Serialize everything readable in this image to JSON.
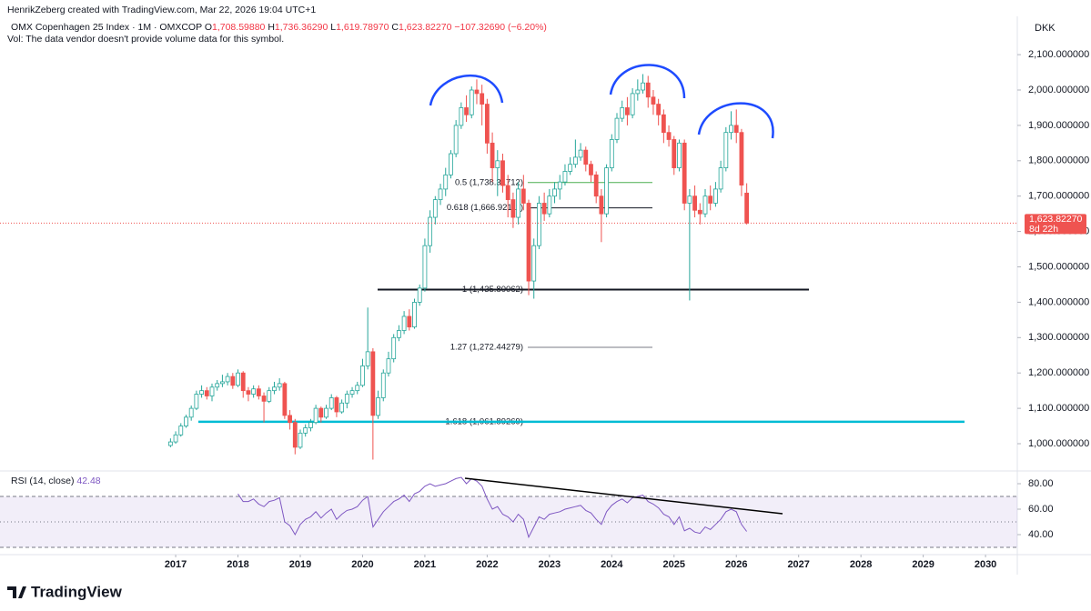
{
  "header": {
    "credit": "HenrikZeberg created with TradingView.com, Mar 22, 2026 19:04 UTC+1",
    "symbol": "OMX Copenhagen 25 Index · 1M · OMXCOP",
    "ohlc_labels": [
      "O",
      "H",
      "L",
      "C"
    ],
    "ohlc_values": [
      "1,708.59880",
      "1,736.36290",
      "1,619.78970",
      "1,623.82270"
    ],
    "change": "−107.32690 (−6.20%)",
    "vol": "Vol: The data vendor doesn't provide volume data for this symbol.",
    "currency": "DKK",
    "countdown": "8d 22h",
    "brand": "TradingView"
  },
  "chart_data": {
    "type": "candlestick",
    "up_color": "#26a69a",
    "down_color": "#ef5350",
    "x": [
      "2016-12",
      "2017-01",
      "2017-02",
      "2017-03",
      "2017-04",
      "2017-05",
      "2017-06",
      "2017-07",
      "2017-08",
      "2017-09",
      "2017-10",
      "2017-11",
      "2017-12",
      "2018-01",
      "2018-02",
      "2018-03",
      "2018-04",
      "2018-05",
      "2018-06",
      "2018-07",
      "2018-08",
      "2018-09",
      "2018-10",
      "2018-11",
      "2018-12",
      "2019-01",
      "2019-02",
      "2019-03",
      "2019-04",
      "2019-05",
      "2019-06",
      "2019-07",
      "2019-08",
      "2019-09",
      "2019-10",
      "2019-11",
      "2019-12",
      "2020-01",
      "2020-02",
      "2020-03",
      "2020-04",
      "2020-05",
      "2020-06",
      "2020-07",
      "2020-08",
      "2020-09",
      "2020-10",
      "2020-11",
      "2020-12",
      "2021-01",
      "2021-02",
      "2021-03",
      "2021-04",
      "2021-05",
      "2021-06",
      "2021-07",
      "2021-08",
      "2021-09",
      "2021-10",
      "2021-11",
      "2021-12",
      "2022-01",
      "2022-02",
      "2022-03",
      "2022-04",
      "2022-05",
      "2022-06",
      "2022-07",
      "2022-08",
      "2022-09",
      "2022-10",
      "2022-11",
      "2022-12",
      "2023-01",
      "2023-02",
      "2023-03",
      "2023-04",
      "2023-05",
      "2023-06",
      "2023-07",
      "2023-08",
      "2023-09",
      "2023-10",
      "2023-11",
      "2023-12",
      "2024-01",
      "2024-02",
      "2024-03",
      "2024-04",
      "2024-05",
      "2024-06",
      "2024-07",
      "2024-08",
      "2024-09",
      "2024-10",
      "2024-11",
      "2024-12",
      "2025-01",
      "2025-02",
      "2025-03",
      "2025-04",
      "2025-05",
      "2025-06",
      "2025-07",
      "2025-08",
      "2025-09",
      "2025-10",
      "2025-11",
      "2025-12",
      "2026-01",
      "2026-02",
      "2026-03"
    ],
    "ohlc": [
      [
        995,
        1015,
        990,
        1005
      ],
      [
        1005,
        1035,
        1000,
        1025
      ],
      [
        1025,
        1058,
        1020,
        1050
      ],
      [
        1050,
        1082,
        1045,
        1075
      ],
      [
        1075,
        1108,
        1065,
        1100
      ],
      [
        1100,
        1150,
        1095,
        1140
      ],
      [
        1140,
        1165,
        1130,
        1150
      ],
      [
        1150,
        1160,
        1125,
        1135
      ],
      [
        1135,
        1170,
        1120,
        1160
      ],
      [
        1160,
        1180,
        1150,
        1170
      ],
      [
        1170,
        1195,
        1160,
        1175
      ],
      [
        1175,
        1200,
        1165,
        1190
      ],
      [
        1190,
        1200,
        1155,
        1165
      ],
      [
        1165,
        1210,
        1160,
        1200
      ],
      [
        1200,
        1205,
        1130,
        1150
      ],
      [
        1150,
        1160,
        1120,
        1140
      ],
      [
        1140,
        1165,
        1130,
        1155
      ],
      [
        1155,
        1165,
        1125,
        1135
      ],
      [
        1135,
        1145,
        1060,
        1120
      ],
      [
        1120,
        1160,
        1115,
        1150
      ],
      [
        1150,
        1175,
        1140,
        1160
      ],
      [
        1160,
        1185,
        1150,
        1170
      ],
      [
        1170,
        1175,
        1070,
        1080
      ],
      [
        1080,
        1095,
        1040,
        1060
      ],
      [
        1060,
        1070,
        970,
        990
      ],
      [
        990,
        1040,
        985,
        1030
      ],
      [
        1030,
        1055,
        1020,
        1045
      ],
      [
        1045,
        1070,
        1035,
        1060
      ],
      [
        1060,
        1110,
        1055,
        1100
      ],
      [
        1100,
        1105,
        1060,
        1075
      ],
      [
        1075,
        1110,
        1070,
        1100
      ],
      [
        1100,
        1140,
        1095,
        1130
      ],
      [
        1130,
        1135,
        1075,
        1090
      ],
      [
        1090,
        1125,
        1085,
        1115
      ],
      [
        1115,
        1150,
        1100,
        1140
      ],
      [
        1140,
        1160,
        1130,
        1150
      ],
      [
        1150,
        1175,
        1140,
        1165
      ],
      [
        1165,
        1240,
        1160,
        1220
      ],
      [
        1220,
        1385,
        1210,
        1260
      ],
      [
        1260,
        1270,
        955,
        1080
      ],
      [
        1080,
        1150,
        1070,
        1130
      ],
      [
        1130,
        1210,
        1120,
        1200
      ],
      [
        1200,
        1260,
        1190,
        1240
      ],
      [
        1240,
        1310,
        1230,
        1300
      ],
      [
        1300,
        1335,
        1290,
        1320
      ],
      [
        1320,
        1375,
        1310,
        1360
      ],
      [
        1360,
        1380,
        1320,
        1330
      ],
      [
        1330,
        1410,
        1325,
        1400
      ],
      [
        1400,
        1450,
        1390,
        1440
      ],
      [
        1440,
        1580,
        1430,
        1560
      ],
      [
        1560,
        1660,
        1540,
        1640
      ],
      [
        1640,
        1700,
        1620,
        1690
      ],
      [
        1690,
        1735,
        1675,
        1720
      ],
      [
        1720,
        1780,
        1700,
        1760
      ],
      [
        1760,
        1830,
        1750,
        1820
      ],
      [
        1820,
        1915,
        1810,
        1900
      ],
      [
        1900,
        1965,
        1890,
        1950
      ],
      [
        1950,
        1985,
        1910,
        1930
      ],
      [
        1930,
        2010,
        1920,
        2000
      ],
      [
        2000,
        2030,
        1960,
        1990
      ],
      [
        1990,
        2015,
        1900,
        1960
      ],
      [
        1960,
        1975,
        1820,
        1850
      ],
      [
        1850,
        1880,
        1740,
        1780
      ],
      [
        1780,
        1830,
        1700,
        1800
      ],
      [
        1800,
        1820,
        1710,
        1730
      ],
      [
        1730,
        1760,
        1640,
        1690
      ],
      [
        1690,
        1710,
        1610,
        1640
      ],
      [
        1640,
        1740,
        1620,
        1720
      ],
      [
        1720,
        1760,
        1660,
        1680
      ],
      [
        1680,
        1690,
        1420,
        1460
      ],
      [
        1460,
        1580,
        1410,
        1560
      ],
      [
        1560,
        1700,
        1550,
        1680
      ],
      [
        1680,
        1710,
        1630,
        1650
      ],
      [
        1650,
        1720,
        1640,
        1700
      ],
      [
        1700,
        1740,
        1680,
        1720
      ],
      [
        1720,
        1760,
        1690,
        1740
      ],
      [
        1740,
        1790,
        1730,
        1770
      ],
      [
        1770,
        1810,
        1760,
        1790
      ],
      [
        1790,
        1860,
        1780,
        1810
      ],
      [
        1810,
        1850,
        1800,
        1830
      ],
      [
        1830,
        1840,
        1770,
        1790
      ],
      [
        1790,
        1800,
        1740,
        1760
      ],
      [
        1760,
        1770,
        1680,
        1700
      ],
      [
        1700,
        1720,
        1570,
        1650
      ],
      [
        1650,
        1790,
        1640,
        1780
      ],
      [
        1780,
        1875,
        1770,
        1860
      ],
      [
        1860,
        1935,
        1850,
        1920
      ],
      [
        1920,
        1970,
        1910,
        1950
      ],
      [
        1950,
        1980,
        1900,
        1930
      ],
      [
        1930,
        2005,
        1920,
        1990
      ],
      [
        1990,
        2030,
        1970,
        2000
      ],
      [
        2000,
        2045,
        1990,
        2020
      ],
      [
        2020,
        2040,
        1950,
        1980
      ],
      [
        1980,
        2000,
        1930,
        1960
      ],
      [
        1960,
        1975,
        1900,
        1930
      ],
      [
        1930,
        1945,
        1850,
        1880
      ],
      [
        1880,
        1900,
        1840,
        1860
      ],
      [
        1860,
        1870,
        1760,
        1780
      ],
      [
        1780,
        1860,
        1770,
        1850
      ],
      [
        1850,
        1860,
        1660,
        1680
      ],
      [
        1680,
        1720,
        1405,
        1700
      ],
      [
        1700,
        1730,
        1640,
        1660
      ],
      [
        1660,
        1680,
        1620,
        1650
      ],
      [
        1650,
        1720,
        1640,
        1700
      ],
      [
        1700,
        1730,
        1660,
        1680
      ],
      [
        1680,
        1740,
        1670,
        1720
      ],
      [
        1720,
        1800,
        1710,
        1780
      ],
      [
        1780,
        1895,
        1770,
        1880
      ],
      [
        1880,
        1940,
        1860,
        1900
      ],
      [
        1900,
        1945,
        1850,
        1880
      ],
      [
        1880,
        1890,
        1700,
        1731.15
      ],
      [
        1708.5988,
        1736.3629,
        1619.7897,
        1623.8227
      ]
    ],
    "xlim": [
      2014.18,
      2030.51
    ],
    "xticks": [
      2017,
      2018,
      2019,
      2020,
      2021,
      2022,
      2023,
      2024,
      2025,
      2026,
      2027,
      2028,
      2029,
      2030
    ],
    "ylim": [
      930.6,
      2203.1
    ],
    "yticks": [
      {
        "value": 1000,
        "label": "1,000.000000"
      },
      {
        "value": 1100,
        "label": "1,100.000000"
      },
      {
        "value": 1200,
        "label": "1,200.000000"
      },
      {
        "value": 1300,
        "label": "1,300.000000"
      },
      {
        "value": 1400,
        "label": "1,400.000000"
      },
      {
        "value": 1500,
        "label": "1,500.000000"
      },
      {
        "value": 1600,
        "label": "1,600.000000"
      },
      {
        "value": 1700,
        "label": "1,700.000000"
      },
      {
        "value": 1800,
        "label": "1,800.000000"
      },
      {
        "value": 1900,
        "label": "1,900.000000"
      },
      {
        "value": 2000,
        "label": "2,000.000000"
      },
      {
        "value": 2100,
        "label": "2,100.000000"
      }
    ],
    "fib": [
      {
        "value": 1738.31712,
        "label": "0.5 (1,738.31712)",
        "color": "#4caf50"
      },
      {
        "value": 1666.92111,
        "label": "0.618 (1,666.92111)",
        "color": "#131722"
      },
      {
        "value": 1435.80062,
        "label": "1 (1,435.80062)",
        "color": "#7e3fb4"
      },
      {
        "value": 1272.44279,
        "label": "1.27 (1,272.44279)",
        "color": "#787b86"
      },
      {
        "value": 1061.89269,
        "label": "1.618 (1,061.89269)",
        "color": "#2962ff"
      }
    ],
    "rsi": {
      "name": "RSI (14, close)",
      "color": "#7e57c2",
      "ylim": [
        25,
        90
      ],
      "levels": [
        70,
        50,
        30
      ],
      "yticks": [
        {
          "value": 80,
          "label": "80.00"
        },
        {
          "value": 60,
          "label": "60.00"
        },
        {
          "value": 40,
          "label": "40.00"
        }
      ],
      "values": [
        null,
        null,
        null,
        null,
        null,
        null,
        null,
        null,
        null,
        null,
        null,
        null,
        null,
        72,
        66,
        66,
        68,
        64,
        62,
        66,
        67,
        69,
        50,
        47,
        40,
        48,
        52,
        54,
        58,
        53,
        57,
        60,
        52,
        56,
        59,
        60,
        62,
        67,
        70,
        46,
        52,
        58,
        62,
        66,
        68,
        71,
        66,
        72,
        74,
        78,
        80,
        78,
        79,
        80,
        82,
        84,
        85,
        80,
        84,
        82,
        78,
        68,
        60,
        62,
        56,
        54,
        50,
        56,
        52,
        38,
        46,
        54,
        52,
        56,
        57,
        58,
        60,
        61,
        62,
        63,
        59,
        57,
        52,
        48,
        58,
        63,
        66,
        68,
        65,
        69,
        70,
        71,
        66,
        64,
        61,
        56,
        54,
        48,
        54,
        43,
        45,
        42,
        41,
        46,
        44,
        48,
        52,
        58,
        60,
        58,
        48,
        42.48
      ]
    }
  }
}
